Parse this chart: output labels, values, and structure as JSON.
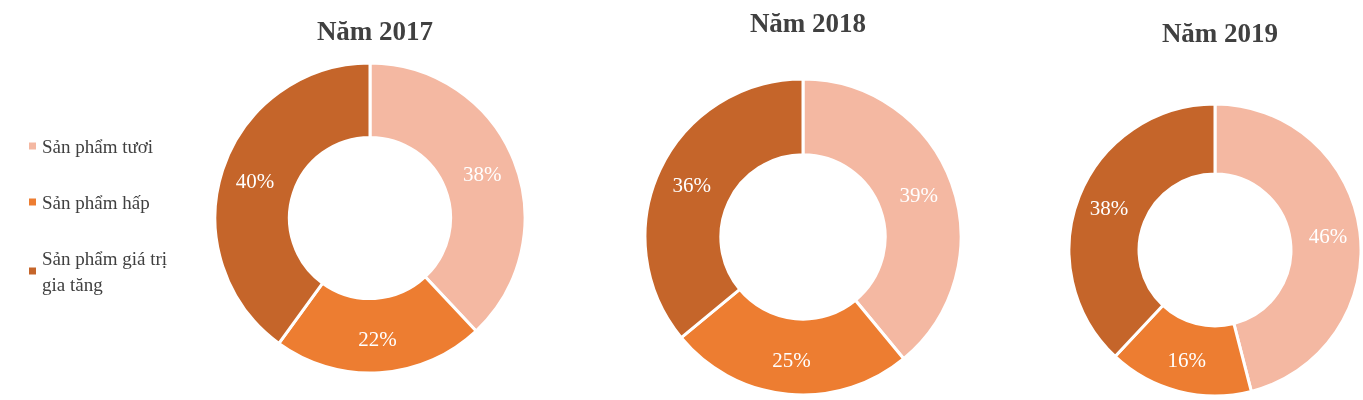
{
  "chart_data": [
    {
      "type": "donut",
      "title": "Năm 2017",
      "categories": [
        "Sản phẩm tươi",
        "Sản phẩm hấp",
        "Sản phẩm giá trị gia tăng"
      ],
      "values": [
        38,
        22,
        40
      ],
      "value_labels": [
        "38%",
        "22%",
        "40%"
      ],
      "colors": [
        "#f4b8a2",
        "#ed7d31",
        "#c5652a"
      ],
      "legend": "left"
    },
    {
      "type": "donut",
      "title": "Năm 2018",
      "categories": [
        null,
        null,
        null
      ],
      "values": [
        39,
        25,
        36
      ],
      "value_labels": [
        "39%",
        "25%",
        "36%"
      ],
      "colors": [
        "#f4b8a2",
        "#ed7d31",
        "#c5652a"
      ]
    },
    {
      "type": "donut",
      "title": "Năm 2019",
      "categories": [
        null,
        null,
        null
      ],
      "values": [
        46,
        16,
        38
      ],
      "value_labels": [
        "46%",
        "16%",
        "38%"
      ],
      "colors": [
        "#f4b8a2",
        "#ed7d31",
        "#c5652a"
      ]
    }
  ]
}
